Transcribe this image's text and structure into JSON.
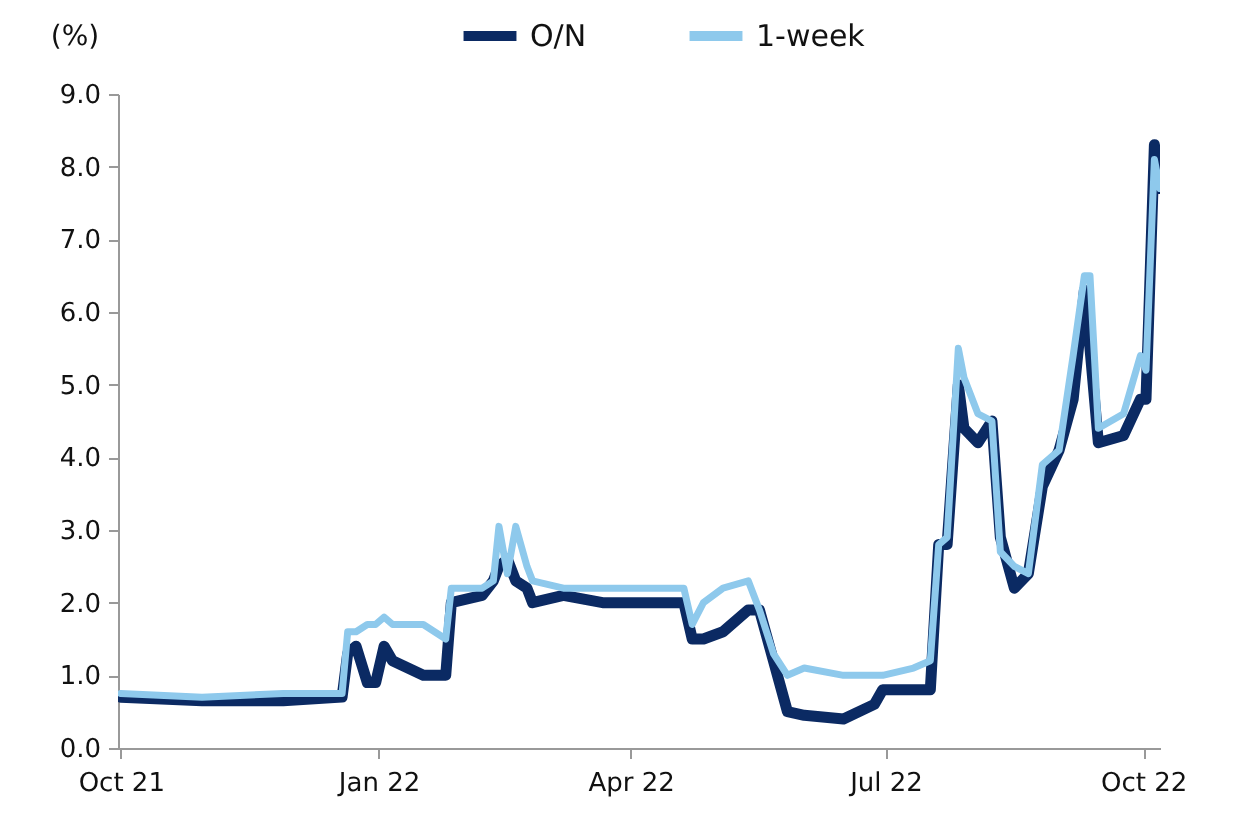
{
  "chart_data": {
    "type": "line",
    "ylabel": "(%)",
    "legend": "top",
    "grid": false,
    "line_style": "solid",
    "marker": "none",
    "x": [
      "2021-10-01",
      "2021-10-30",
      "2021-11-28",
      "2021-12-19",
      "2021-12-21",
      "2021-12-24",
      "2021-12-28",
      "2021-12-31",
      "2022-01-03",
      "2022-01-06",
      "2022-01-17",
      "2022-01-25",
      "2022-01-27",
      "2022-02-07",
      "2022-02-11",
      "2022-02-13",
      "2022-02-16",
      "2022-02-19",
      "2022-02-23",
      "2022-02-25",
      "2022-03-08",
      "2022-03-22",
      "2022-04-02",
      "2022-04-20",
      "2022-04-23",
      "2022-04-27",
      "2022-05-04",
      "2022-05-13",
      "2022-05-17",
      "2022-05-22",
      "2022-05-27",
      "2022-06-02",
      "2022-06-16",
      "2022-06-27",
      "2022-06-30",
      "2022-07-11",
      "2022-07-17",
      "2022-07-20",
      "2022-07-23",
      "2022-07-27",
      "2022-07-29",
      "2022-08-03",
      "2022-08-08",
      "2022-08-11",
      "2022-08-16",
      "2022-08-21",
      "2022-08-26",
      "2022-09-01",
      "2022-09-06",
      "2022-09-10",
      "2022-09-12",
      "2022-09-15",
      "2022-09-24",
      "2022-09-30",
      "2022-10-02",
      "2022-10-05",
      "2022-10-07"
    ],
    "series": [
      {
        "name": "O/N",
        "color": "#0b2a63",
        "values": [
          0.7,
          0.65,
          0.65,
          0.7,
          1.3,
          1.4,
          0.9,
          0.9,
          1.4,
          1.2,
          1.0,
          1.0,
          2.0,
          2.1,
          2.3,
          2.5,
          2.6,
          2.3,
          2.2,
          2.0,
          2.1,
          2.0,
          2.0,
          2.0,
          1.5,
          1.5,
          1.6,
          1.9,
          1.9,
          1.2,
          0.5,
          0.45,
          0.4,
          0.6,
          0.8,
          0.8,
          0.8,
          2.8,
          2.8,
          5.0,
          4.4,
          4.2,
          4.5,
          2.9,
          2.2,
          2.4,
          3.6,
          4.1,
          4.8,
          6.3,
          5.5,
          4.2,
          4.3,
          4.8,
          4.8,
          8.3,
          7.7
        ]
      },
      {
        "name": "1-week",
        "color": "#8ec9ec",
        "values": [
          0.75,
          0.7,
          0.75,
          0.75,
          1.6,
          1.6,
          1.7,
          1.7,
          1.8,
          1.7,
          1.7,
          1.5,
          2.2,
          2.2,
          2.3,
          3.05,
          2.4,
          3.05,
          2.5,
          2.3,
          2.2,
          2.2,
          2.2,
          2.2,
          1.7,
          2.0,
          2.2,
          2.3,
          1.9,
          1.3,
          1.0,
          1.1,
          1.0,
          1.0,
          1.0,
          1.1,
          1.2,
          2.8,
          2.9,
          5.5,
          5.1,
          4.6,
          4.5,
          2.7,
          2.5,
          2.4,
          3.9,
          4.1,
          5.4,
          6.5,
          6.5,
          4.4,
          4.6,
          5.4,
          5.2,
          8.1,
          7.7
        ]
      }
    ],
    "xlim": [
      "2021-09-30",
      "2022-10-07"
    ],
    "xticks": [
      {
        "value": "2021-10-01",
        "label": "Oct 21"
      },
      {
        "value": "2022-01-01",
        "label": "Jan 22"
      },
      {
        "value": "2022-04-01",
        "label": "Apr 22"
      },
      {
        "value": "2022-07-01",
        "label": "Jul 22"
      },
      {
        "value": "2022-10-01",
        "label": "Oct 22"
      }
    ],
    "ylim": [
      0,
      9
    ],
    "yticks": [
      {
        "value": 0,
        "label": "0.0"
      },
      {
        "value": 1,
        "label": "1.0"
      },
      {
        "value": 2,
        "label": "2.0"
      },
      {
        "value": 3,
        "label": "3.0"
      },
      {
        "value": 4,
        "label": "4.0"
      },
      {
        "value": 5,
        "label": "5.0"
      },
      {
        "value": 6,
        "label": "6.0"
      },
      {
        "value": 7,
        "label": "7.0"
      },
      {
        "value": 8,
        "label": "8.0"
      },
      {
        "value": 9,
        "label": "9.0"
      }
    ]
  }
}
